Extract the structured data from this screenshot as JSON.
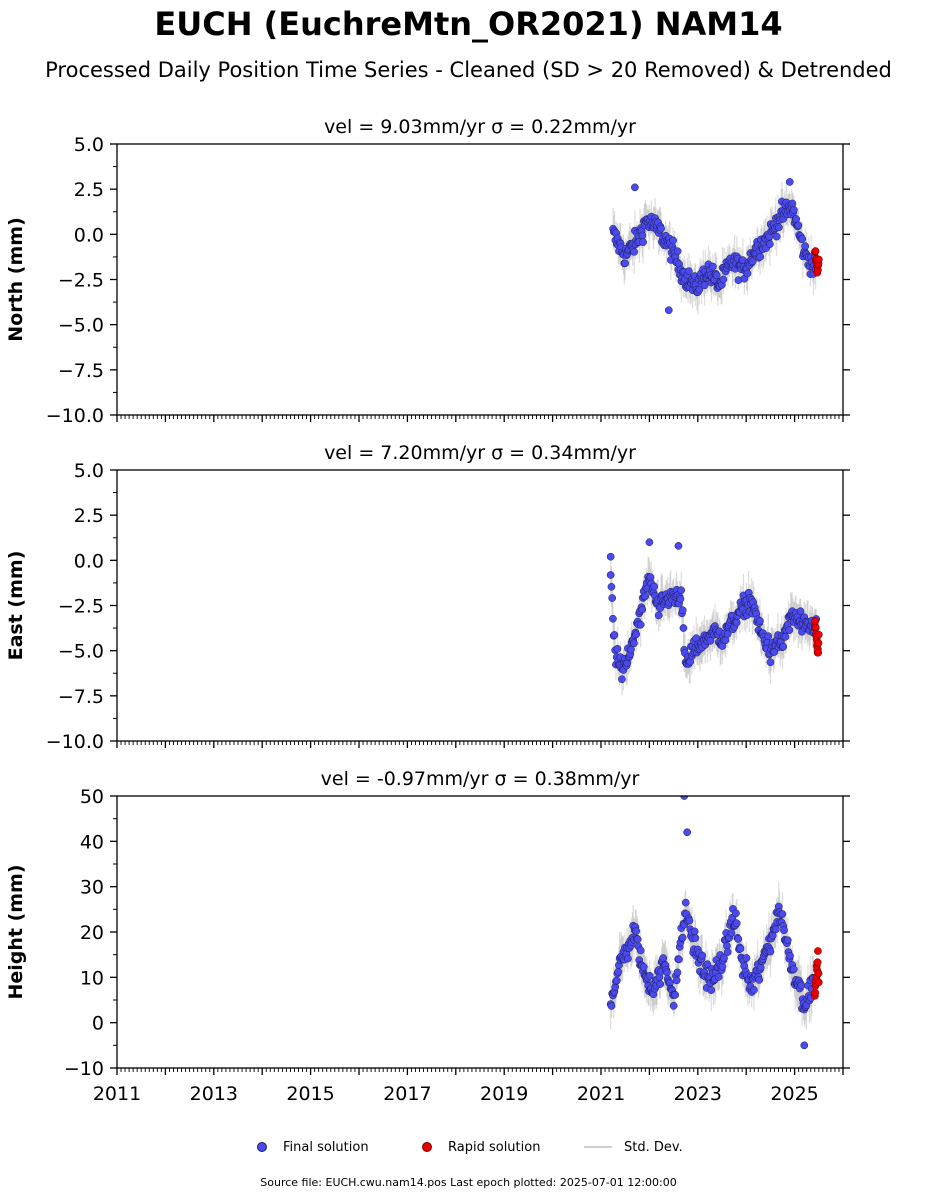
{
  "title": "EUCH (EuchreMtn_OR2021) NAM14",
  "subtitle": "Processed Daily Position Time Series - Cleaned (SD > 20 Removed) & Detrended",
  "legend": {
    "final": "Final solution",
    "rapid": "Rapid solution",
    "std": "Std. Dev.",
    "colors": {
      "final": "#4a4aee",
      "rapid": "#ee0000",
      "std": "#bdbdbd"
    }
  },
  "footer": "Source file: EUCH.cwu.nam14.pos  Last epoch plotted: 2025-07-01 12:00:00",
  "chart_data": [
    {
      "type": "scatter",
      "title": "vel = 9.03mm/yr   σ = 0.22mm/yr",
      "ylabel": "North (mm)",
      "xlim": [
        2011,
        2026
      ],
      "ylim": [
        -10,
        5
      ],
      "yticks": [
        5,
        2.5,
        0,
        -2.5,
        -5,
        -7.5,
        -10
      ],
      "ytick_labels": [
        "5.0",
        "2.5",
        "0.0",
        "−2.5",
        "−5.0",
        "−7.5",
        "−10.0"
      ],
      "final_series": {
        "name": "Final solution",
        "x": [
          2021.25,
          2021.5,
          2021.75,
          2021.95,
          2022.2,
          2022.45,
          2022.7,
          2022.95,
          2023.2,
          2023.45,
          2023.7,
          2023.95,
          2024.2,
          2024.45,
          2024.7,
          2024.95,
          2025.2,
          2025.45
        ],
        "y": [
          0.0,
          -1.2,
          -0.3,
          0.8,
          0.2,
          -0.8,
          -2.2,
          -3.0,
          -2.0,
          -2.8,
          -1.5,
          -2.0,
          -0.8,
          -0.2,
          1.0,
          1.5,
          -1.0,
          -2.0
        ]
      },
      "rapid_series": {
        "name": "Rapid solution",
        "x": [
          2025.42,
          2025.44,
          2025.46,
          2025.48,
          2025.5
        ],
        "y": [
          -0.8,
          -1.3,
          -1.8,
          -2.2,
          -1.5
        ]
      },
      "outliers": {
        "x": [
          2021.7,
          2022.4,
          2024.9
        ],
        "y": [
          2.6,
          -4.2,
          2.9
        ]
      }
    },
    {
      "type": "scatter",
      "title": "vel = 7.20mm/yr   σ = 0.34mm/yr",
      "ylabel": "East (mm)",
      "xlim": [
        2011,
        2026
      ],
      "ylim": [
        -10,
        5
      ],
      "yticks": [
        5,
        2.5,
        0,
        -2.5,
        -5,
        -7.5,
        -10
      ],
      "ytick_labels": [
        "5.0",
        "2.5",
        "0.0",
        "−2.5",
        "−5.0",
        "−7.5",
        "−10.0"
      ],
      "final_series": {
        "name": "Final solution",
        "x": [
          2021.2,
          2021.3,
          2021.45,
          2021.6,
          2021.8,
          2022.0,
          2022.2,
          2022.45,
          2022.65,
          2022.75,
          2022.9,
          2023.1,
          2023.3,
          2023.5,
          2023.7,
          2023.9,
          2024.1,
          2024.3,
          2024.5,
          2024.75,
          2024.95,
          2025.2,
          2025.45
        ],
        "y": [
          -0.8,
          -5.5,
          -6.0,
          -5.0,
          -3.0,
          -1.0,
          -2.5,
          -2.0,
          -1.8,
          -6.0,
          -5.0,
          -4.5,
          -4.0,
          -4.3,
          -3.5,
          -2.8,
          -2.2,
          -4.0,
          -5.0,
          -4.5,
          -3.0,
          -3.8,
          -3.5
        ]
      },
      "rapid_series": {
        "name": "Rapid solution",
        "x": [
          2025.42,
          2025.44,
          2025.46,
          2025.48,
          2025.5
        ],
        "y": [
          -3.5,
          -4.0,
          -4.5,
          -5.0,
          -4.2
        ]
      },
      "outliers": {
        "x": [
          2021.2,
          2022.0,
          2022.6
        ],
        "y": [
          0.2,
          1.0,
          0.8
        ]
      }
    },
    {
      "type": "scatter",
      "title": "vel = -0.97mm/yr   σ = 0.38mm/yr",
      "ylabel": "Height (mm)",
      "xlim": [
        2011,
        2026
      ],
      "ylim": [
        -10,
        50
      ],
      "yticks": [
        50,
        40,
        30,
        20,
        10,
        0,
        -10
      ],
      "ytick_labels": [
        "50",
        "40",
        "30",
        "20",
        "10",
        "0",
        "−10"
      ],
      "xticks": [
        2011,
        2013,
        2015,
        2017,
        2019,
        2021,
        2023,
        2025
      ],
      "xtick_labels": [
        "2011",
        "2013",
        "2015",
        "2017",
        "2019",
        "2021",
        "2023",
        "2025"
      ],
      "final_series": {
        "name": "Final solution",
        "x": [
          2021.2,
          2021.4,
          2021.7,
          2021.9,
          2022.1,
          2022.3,
          2022.5,
          2022.75,
          2022.9,
          2023.1,
          2023.3,
          2023.55,
          2023.75,
          2023.9,
          2024.1,
          2024.3,
          2024.55,
          2024.7,
          2024.9,
          2025.1,
          2025.25,
          2025.4
        ],
        "y": [
          5,
          13,
          20,
          10,
          8,
          13,
          6,
          25,
          18,
          12,
          9,
          15,
          24,
          14,
          8,
          12,
          20,
          25,
          14,
          8,
          4,
          10
        ]
      },
      "rapid_series": {
        "name": "Rapid solution",
        "x": [
          2025.42,
          2025.44,
          2025.46,
          2025.48,
          2025.5
        ],
        "y": [
          6,
          9,
          12,
          15,
          8
        ]
      },
      "outliers": {
        "x": [
          2022.72,
          2022.78,
          2025.2
        ],
        "y": [
          50,
          42,
          -5
        ]
      }
    }
  ]
}
